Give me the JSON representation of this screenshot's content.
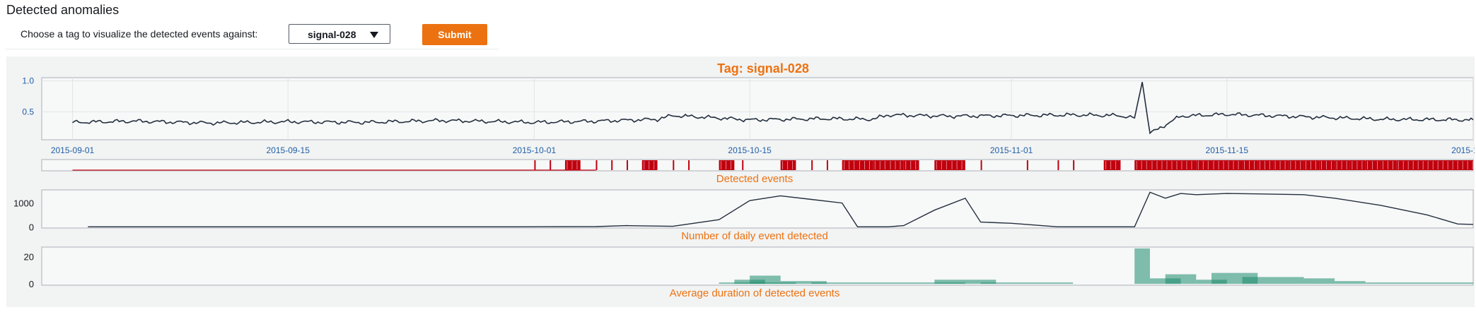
{
  "page": {
    "heading": "Detected anomalies",
    "choose_label": "Choose a tag to visualize the detected events against:",
    "selected_tag": "signal-028",
    "submit_label": "Submit"
  },
  "colors": {
    "accent": "#ec7211",
    "title": "#ec7211",
    "signal_line": "#232f3e",
    "events": "#c0000e",
    "daily_line": "#232f3e",
    "duration_bar": "#1b8a6b",
    "axis_text": "#1f5fa6"
  },
  "chart_data": [
    {
      "type": "line",
      "title": "Tag: signal-028",
      "x_type": "date",
      "xlim": [
        "2015-08-30",
        "2015-12-01"
      ],
      "xticks": [
        "2015-09-01",
        "2015-09-15",
        "2015-10-01",
        "2015-10-15",
        "2015-11-01",
        "2015-11-15",
        "2015-12-01"
      ],
      "ylim": [
        0.05,
        1.05
      ],
      "yticks": [
        0.5,
        1.0
      ],
      "ytick_labels": [
        "0.5",
        "1.0"
      ],
      "grid": true,
      "series": [
        {
          "x": [
            "2015-09-01",
            "2015-09-05",
            "2015-09-10",
            "2015-09-15",
            "2015-09-20",
            "2015-09-25",
            "2015-10-01",
            "2015-10-05",
            "2015-10-09",
            "2015-10-10",
            "2015-10-13",
            "2015-10-15",
            "2015-10-20",
            "2015-10-23",
            "2015-10-24",
            "2015-10-28",
            "2015-11-01",
            "2015-11-05",
            "2015-11-08",
            "2015-11-09",
            "2015-11-09T12:00",
            "2015-11-10",
            "2015-11-12",
            "2015-11-15",
            "2015-11-20",
            "2015-11-25",
            "2015-12-01"
          ],
          "y": [
            0.33,
            0.35,
            0.32,
            0.34,
            0.33,
            0.36,
            0.33,
            0.35,
            0.38,
            0.44,
            0.4,
            0.37,
            0.39,
            0.38,
            0.45,
            0.43,
            0.44,
            0.45,
            0.44,
            0.4,
            0.98,
            0.15,
            0.43,
            0.46,
            0.42,
            0.38,
            0.37
          ]
        }
      ]
    },
    {
      "type": "event_strip",
      "xlabel": "Detected events",
      "x_type": "date",
      "events": [
        [
          "2015-09-01",
          "2015-10-05"
        ],
        [
          "2015-10-01",
          "2015-10-01"
        ],
        [
          "2015-10-02",
          "2015-10-02"
        ],
        [
          "2015-10-03",
          "2015-10-04"
        ],
        [
          "2015-10-05",
          "2015-10-05"
        ],
        [
          "2015-10-06",
          "2015-10-06"
        ],
        [
          "2015-10-07",
          "2015-10-07"
        ],
        [
          "2015-10-08",
          "2015-10-09"
        ],
        [
          "2015-10-10",
          "2015-10-10"
        ],
        [
          "2015-10-11",
          "2015-10-11"
        ],
        [
          "2015-10-13",
          "2015-10-14"
        ],
        [
          "2015-10-14T12:00",
          "2015-10-14T12:00"
        ],
        [
          "2015-10-17",
          "2015-10-18"
        ],
        [
          "2015-10-19",
          "2015-10-19"
        ],
        [
          "2015-10-20",
          "2015-10-20"
        ],
        [
          "2015-10-21",
          "2015-10-22"
        ],
        [
          "2015-10-22",
          "2015-10-23"
        ],
        [
          "2015-10-23",
          "2015-10-24"
        ],
        [
          "2015-10-24",
          "2015-10-25"
        ],
        [
          "2015-10-25",
          "2015-10-26"
        ],
        [
          "2015-10-27",
          "2015-10-28"
        ],
        [
          "2015-10-28",
          "2015-10-28"
        ],
        [
          "2015-10-28",
          "2015-10-29"
        ],
        [
          "2015-10-30",
          "2015-10-30"
        ],
        [
          "2015-11-02",
          "2015-11-02"
        ],
        [
          "2015-11-04",
          "2015-11-04"
        ],
        [
          "2015-11-05",
          "2015-11-05"
        ],
        [
          "2015-11-07",
          "2015-11-08"
        ],
        [
          "2015-11-08",
          "2015-11-08"
        ],
        [
          "2015-11-09",
          "2015-11-10"
        ],
        [
          "2015-11-10",
          "2015-11-13"
        ],
        [
          "2015-11-13",
          "2015-11-14"
        ],
        [
          "2015-11-14",
          "2015-11-16"
        ],
        [
          "2015-11-16",
          "2015-11-17"
        ],
        [
          "2015-11-17",
          "2015-11-18"
        ],
        [
          "2015-11-18",
          "2015-11-19"
        ],
        [
          "2015-11-19",
          "2015-11-20"
        ],
        [
          "2015-11-20",
          "2015-11-21"
        ],
        [
          "2015-11-21",
          "2015-11-22"
        ],
        [
          "2015-11-22",
          "2015-11-23"
        ],
        [
          "2015-11-23",
          "2015-11-24"
        ],
        [
          "2015-11-24",
          "2015-11-25"
        ],
        [
          "2015-11-25",
          "2015-11-26"
        ],
        [
          "2015-11-26",
          "2015-12-01"
        ]
      ]
    },
    {
      "type": "line",
      "xlabel": "Number of daily event detected",
      "x_type": "date",
      "ylim": [
        -50,
        1550
      ],
      "yticks": [
        0,
        1000
      ],
      "ytick_labels": [
        "0",
        "1000"
      ],
      "series": [
        {
          "x": [
            "2015-09-02",
            "2015-09-15",
            "2015-09-30",
            "2015-10-05",
            "2015-10-07",
            "2015-10-10",
            "2015-10-13",
            "2015-10-15",
            "2015-10-17",
            "2015-10-19",
            "2015-10-21",
            "2015-10-22",
            "2015-10-24",
            "2015-10-25",
            "2015-10-27",
            "2015-10-29",
            "2015-10-30",
            "2015-11-01",
            "2015-11-04",
            "2015-11-09",
            "2015-11-10",
            "2015-11-11",
            "2015-11-12",
            "2015-11-13",
            "2015-11-15",
            "2015-11-17",
            "2015-11-20",
            "2015-11-22",
            "2015-11-25",
            "2015-11-28",
            "2015-11-30",
            "2015-12-01"
          ],
          "y": [
            0,
            0,
            0,
            10,
            50,
            20,
            300,
            1100,
            1300,
            1150,
            1000,
            0,
            0,
            50,
            700,
            1200,
            200,
            150,
            0,
            0,
            1450,
            1200,
            1400,
            1350,
            1400,
            1380,
            1350,
            1200,
            900,
            500,
            120,
            100
          ]
        }
      ]
    },
    {
      "type": "bar",
      "xlabel": "Average duration of detected events",
      "x_type": "date",
      "ylim": [
        -1,
        27
      ],
      "yticks": [
        0,
        20
      ],
      "ytick_labels": [
        "0",
        "20"
      ],
      "bars": [
        [
          "2015-10-13",
          "2015-10-18",
          1
        ],
        [
          "2015-10-14",
          "2015-10-16",
          3
        ],
        [
          "2015-10-15",
          "2015-10-17",
          6
        ],
        [
          "2015-10-17",
          "2015-10-20",
          2
        ],
        [
          "2015-10-19",
          "2015-10-26",
          1
        ],
        [
          "2015-10-26",
          "2015-10-29",
          1
        ],
        [
          "2015-10-27",
          "2015-10-31",
          3
        ],
        [
          "2015-10-30",
          "2015-11-05",
          1
        ],
        [
          "2015-11-09",
          "2015-11-10",
          26
        ],
        [
          "2015-11-10",
          "2015-11-12",
          4
        ],
        [
          "2015-11-11",
          "2015-11-13",
          7
        ],
        [
          "2015-11-13",
          "2015-11-15",
          3
        ],
        [
          "2015-11-14",
          "2015-11-17",
          8
        ],
        [
          "2015-11-16",
          "2015-11-20",
          5
        ],
        [
          "2015-11-20",
          "2015-11-22",
          4
        ],
        [
          "2015-11-22",
          "2015-11-24",
          2
        ],
        [
          "2015-11-24",
          "2015-12-01",
          1
        ]
      ]
    }
  ]
}
